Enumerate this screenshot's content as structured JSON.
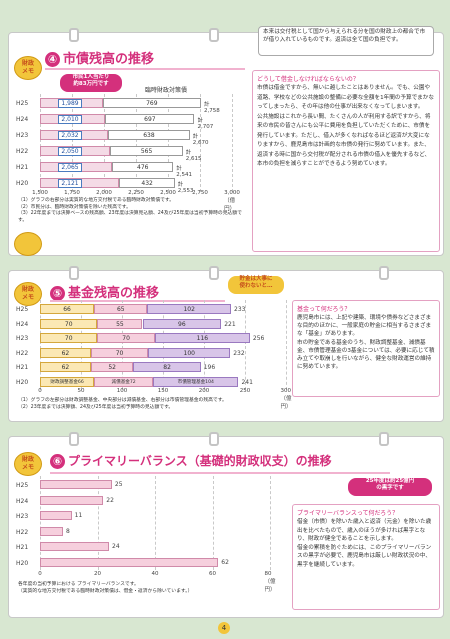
{
  "section1": {
    "badge": "財政\nメモ",
    "title_num": "④",
    "title": "市債残高の推移",
    "top_note": "本来は交付税として国から与えられる分を国の財政上の都合で市が借り入れているものです。返済は全て国の負担です。",
    "per_capita": "市民1人当たり\n約83万円です",
    "legend_label": "臨時財政対策債",
    "years": [
      "H25",
      "H24",
      "H23",
      "H22",
      "H21",
      "H20"
    ],
    "left_values": [
      "1,989",
      "2,010",
      "2,032",
      "2,050",
      "2,065",
      "2,121"
    ],
    "right_values": [
      "769",
      "697",
      "638",
      "565",
      "476",
      "432"
    ],
    "totals": [
      "計2,758",
      "計2,707",
      "計2,670",
      "計2,615",
      "計2,541",
      "計2,553"
    ],
    "ticks": [
      "1,500",
      "1,750",
      "2,000",
      "2,250",
      "2,500",
      "2,750",
      "3,000（億円）"
    ],
    "notes": "（1）グラフの右部分は実質的な地方交付税である臨時財政対策債です。\n（2）市民分は、臨時財政対策債を除いた残高です。\n（3）22年度までは決算ベースの残高額、23年度は決算見込額、24及び25年度は当初予算時の見込額です。",
    "box_title": "どうして借金しなければならないの？",
    "box_text": "市債は借金ですから、無いに越したことはありません。でも、公園や道路、学校などの公共施設の整備に必要な全額を1年間の予算でまかなってしまったら、その年は他の仕事が出来なくなってしまいます。\n公共施設はこれから長い間、たくさんの人が利用する訳ですから、将来の市民の皆さんにも公平に費用を負担していただくために、市債を発行しています。ただし、借入が多くなればなるほど返済が大変になりますから、鹿児島市は計画的な市債の発行に努めています。また、返済する時に国から交付税が配分される市債の借入を優先するなど、本市の負担を減らすことができるよう努めています。"
  },
  "chart1": {
    "type": "bar",
    "categories": [
      "H25",
      "H24",
      "H23",
      "H22",
      "H21",
      "H20"
    ],
    "series": [
      {
        "values": [
          1989,
          2010,
          2032,
          2050,
          2065,
          2121
        ]
      },
      {
        "name": "臨時財政対策債",
        "values": [
          769,
          697,
          638,
          565,
          476,
          432
        ]
      }
    ],
    "xlim": [
      1500,
      3000
    ]
  },
  "section2": {
    "badge": "財政\nメモ",
    "title_num": "⑤",
    "title": "基金残高の推移",
    "callout": "貯金は大事に\n使わないと…",
    "years": [
      "H25",
      "H24",
      "H23",
      "H22",
      "H21",
      "H20"
    ],
    "seg1": [
      "66",
      "70",
      "70",
      "62",
      "62",
      "66"
    ],
    "seg2": [
      "65",
      "55",
      "70",
      "70",
      "52",
      "72"
    ],
    "seg3": [
      "102",
      "96",
      "116",
      "100",
      "82",
      "104"
    ],
    "totals": [
      "233",
      "221",
      "256",
      "232",
      "196",
      "241"
    ],
    "legend": [
      "財政調整基金66",
      "減債基金72",
      "市債管理基金104"
    ],
    "ticks": [
      "0",
      "50",
      "100",
      "150",
      "200",
      "250",
      "300（億円）"
    ],
    "notes": "（1）グラフの左部分は財政調整基金、中央部分は減債基金、右部分は市債管理基金の残高です。\n（2）23年度までは決算額、24及び25年度は当初予算時の見込額です。",
    "box_title": "基金って何だろう？",
    "box_text": "鹿児島市には、上記や建築、環境や債券などさまざまな目的のほかに、一般家庭の貯金に相当するさまざまな「基金」があります。\n市の貯金である基金のうち、財政調整基金、減債基金、市債管理基金の3基金については、必要に応じて積み立てや取崩しを行いながら、健全な財政運営の維持に努めています。"
  },
  "chart2": {
    "type": "bar",
    "categories": [
      "H25",
      "H24",
      "H23",
      "H22",
      "H21",
      "H20"
    ],
    "series": [
      {
        "name": "財政調整基金",
        "values": [
          66,
          70,
          70,
          62,
          62,
          66
        ]
      },
      {
        "name": "減債基金",
        "values": [
          65,
          55,
          70,
          70,
          52,
          72
        ]
      },
      {
        "name": "市債管理基金",
        "values": [
          102,
          96,
          116,
          100,
          82,
          104
        ]
      }
    ],
    "xlim": [
      0,
      300
    ]
  },
  "section3": {
    "badge": "財政\nメモ",
    "title_num": "⑥",
    "title": "プライマリーバランス（基礎的財政収支）の推移",
    "callout": "25年度は約25億円\nの黒字です",
    "years": [
      "H25",
      "H24",
      "H23",
      "H22",
      "H21",
      "H20"
    ],
    "values": [
      "25",
      "22",
      "11",
      "8",
      "24",
      "62"
    ],
    "ticks": [
      "0",
      "20",
      "40",
      "60",
      "80（億円）"
    ],
    "notes": "各年度の当初予算における プライマリーバランスです。\n（実質的な地方交付税である臨時財政対策債は、借金・返済から除いています。）",
    "box_title": "プライマリーバランスって何だろう？",
    "box_text": "借金（市債）を除いた歳入と返済（元金）を除いた歳出を比べたもので、歳入のほうが多ければ黒字となり、財政が健全であることを示します。\n借金の累積を防ぐためには、このプライマリーバランスの黒字が必要で、鹿児島市は厳しい財政状況の中、黒字を継続しています。"
  },
  "chart3": {
    "type": "bar",
    "categories": [
      "H25",
      "H24",
      "H23",
      "H22",
      "H21",
      "H20"
    ],
    "values": [
      25,
      22,
      11,
      8,
      24,
      62
    ],
    "xlim": [
      0,
      80
    ]
  },
  "page_number": "4"
}
